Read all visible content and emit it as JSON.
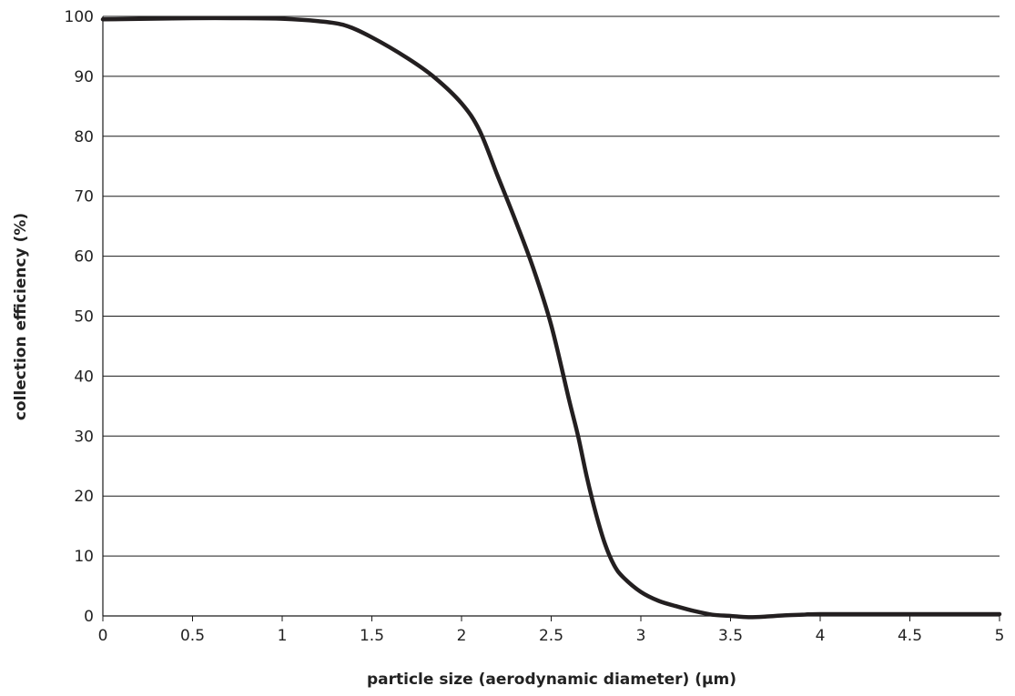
{
  "chart_data": {
    "type": "line",
    "xlabel": "particle size (aerodynamic diameter) (μm)",
    "ylabel": "collection efficiency (%)",
    "xlim": [
      0,
      5
    ],
    "ylim": [
      0,
      100
    ],
    "x_ticks": [
      "0",
      "0.5",
      "1",
      "1.5",
      "2",
      "2.5",
      "3",
      "3.5",
      "4",
      "4.5",
      "5"
    ],
    "y_ticks": [
      "0",
      "10",
      "20",
      "30",
      "40",
      "50",
      "60",
      "70",
      "80",
      "90",
      "100"
    ],
    "grid": "horizontal",
    "legend": "none",
    "series": [
      {
        "color": "#231f20",
        "x": [
          0,
          0.25,
          0.5,
          0.75,
          1.0,
          1.2,
          1.35,
          1.5,
          1.7,
          1.85,
          2.0,
          2.1,
          2.2,
          2.3,
          2.4,
          2.5,
          2.6,
          2.65,
          2.7,
          2.75,
          2.8,
          2.85,
          2.9,
          3.0,
          3.1,
          3.2,
          3.3,
          3.4,
          3.5,
          3.6,
          3.7,
          3.8,
          3.9,
          4.0,
          4.5,
          5.0
        ],
        "values": [
          99.5,
          99.6,
          99.7,
          99.7,
          99.6,
          99.2,
          98.5,
          96.5,
          93.0,
          89.8,
          85.5,
          81.0,
          73.5,
          66.0,
          58.0,
          48.5,
          36.0,
          30.0,
          23.0,
          17.0,
          12.0,
          8.5,
          6.5,
          4.0,
          2.5,
          1.6,
          0.8,
          0.2,
          0.0,
          -0.2,
          -0.1,
          0.1,
          0.2,
          0.3,
          0.3,
          0.3
        ]
      }
    ]
  }
}
